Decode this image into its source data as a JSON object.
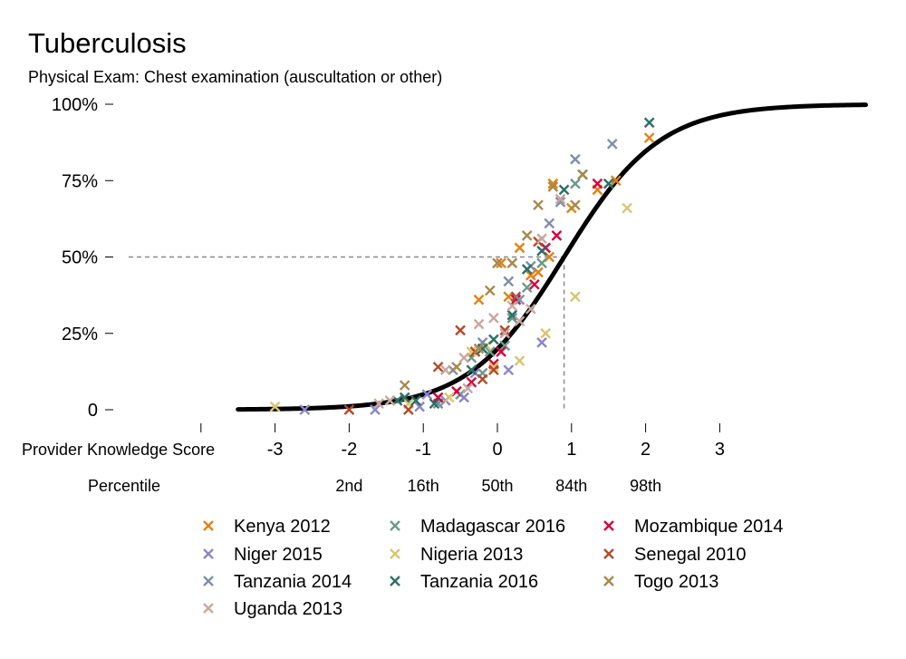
{
  "chart_data": {
    "type": "scatter",
    "title": "Tuberculosis",
    "subtitle": "Physical Exam: Chest examination (auscultation or other)",
    "xlabel": "Provider Knowledge Score",
    "secondary_xlabel": "Percentile",
    "xlim": [
      -4.0,
      5.0
    ],
    "ylim": [
      0,
      100
    ],
    "y_ticks": [
      {
        "value": 0,
        "label": "0"
      },
      {
        "value": 25,
        "label": "25%"
      },
      {
        "value": 50,
        "label": "50%"
      },
      {
        "value": 75,
        "label": "75%"
      },
      {
        "value": 100,
        "label": "100%"
      }
    ],
    "x_ticks": [
      {
        "value": -3,
        "label": "-3"
      },
      {
        "value": -2,
        "label": "-2"
      },
      {
        "value": -1,
        "label": "-1"
      },
      {
        "value": 0,
        "label": "0"
      },
      {
        "value": 1,
        "label": "1"
      },
      {
        "value": 2,
        "label": "2"
      },
      {
        "value": 3,
        "label": "3"
      }
    ],
    "percentile_ticks": [
      {
        "value": -2,
        "label": "2nd"
      },
      {
        "value": -1,
        "label": "16th"
      },
      {
        "value": 0,
        "label": "50th"
      },
      {
        "value": 1,
        "label": "84th"
      },
      {
        "value": 2,
        "label": "98th"
      }
    ],
    "reference_point": {
      "x": 0.9,
      "y": 50
    },
    "fitted_curve": {
      "type": "logistic",
      "midpoint": 0.9,
      "slope": 1.55,
      "x_range": [
        -3.5,
        4.97
      ]
    },
    "grid": false,
    "legend_position": "bottom",
    "series": [
      {
        "name": "Kenya 2012",
        "color": "#E08214",
        "points": [
          [
            -0.25,
            36
          ],
          [
            0.05,
            48
          ],
          [
            0.15,
            37
          ],
          [
            0.3,
            53
          ],
          [
            0.55,
            45
          ],
          [
            0.7,
            50
          ],
          [
            0.75,
            74
          ],
          [
            1.0,
            66
          ],
          [
            1.35,
            72
          ],
          [
            1.6,
            75
          ],
          [
            2.05,
            89
          ],
          [
            0.45,
            44
          ]
        ]
      },
      {
        "name": "Madagascar 2016",
        "color": "#6A9A8A",
        "points": [
          [
            -0.8,
            2
          ],
          [
            -0.5,
            5
          ],
          [
            -0.35,
            17
          ],
          [
            -0.1,
            19
          ],
          [
            0.1,
            21
          ],
          [
            0.2,
            30
          ],
          [
            0.4,
            40
          ],
          [
            0.6,
            48
          ],
          [
            1.05,
            74
          ],
          [
            -0.2,
            12
          ]
        ]
      },
      {
        "name": "Mozambique 2014",
        "color": "#D6003B",
        "points": [
          [
            -0.8,
            4
          ],
          [
            -0.55,
            6
          ],
          [
            -0.35,
            9
          ],
          [
            0.05,
            19
          ],
          [
            0.25,
            36
          ],
          [
            0.5,
            41
          ],
          [
            0.65,
            53
          ],
          [
            0.8,
            57
          ],
          [
            1.35,
            74
          ],
          [
            -0.05,
            15
          ]
        ]
      },
      {
        "name": "Niger 2015",
        "color": "#8B86C9",
        "points": [
          [
            -2.6,
            0
          ],
          [
            -1.65,
            0
          ],
          [
            -1.05,
            1
          ],
          [
            -0.95,
            5
          ],
          [
            -0.7,
            3
          ],
          [
            -0.45,
            4
          ],
          [
            0.15,
            13
          ],
          [
            0.6,
            22
          ],
          [
            -0.3,
            12
          ]
        ]
      },
      {
        "name": "Nigeria 2013",
        "color": "#D8C570",
        "points": [
          [
            -3.0,
            1
          ],
          [
            -1.2,
            2
          ],
          [
            -0.65,
            4
          ],
          [
            -0.35,
            19
          ],
          [
            -0.05,
            14
          ],
          [
            0.3,
            16
          ],
          [
            0.65,
            25
          ],
          [
            1.05,
            37
          ],
          [
            1.75,
            66
          ],
          [
            -0.15,
            21
          ]
        ]
      },
      {
        "name": "Senegal 2010",
        "color": "#B04A2A",
        "points": [
          [
            -2.0,
            0
          ],
          [
            -1.2,
            0
          ],
          [
            -0.8,
            14
          ],
          [
            -0.5,
            26
          ],
          [
            -0.3,
            19
          ],
          [
            -0.05,
            13
          ],
          [
            0.1,
            26
          ],
          [
            0.25,
            37
          ],
          [
            0.55,
            55
          ],
          [
            -0.2,
            10
          ]
        ]
      },
      {
        "name": "Tanzania 2014",
        "color": "#7D8FA8",
        "points": [
          [
            -0.6,
            13
          ],
          [
            -0.2,
            22
          ],
          [
            0.15,
            42
          ],
          [
            0.45,
            47
          ],
          [
            0.7,
            61
          ],
          [
            0.85,
            68
          ],
          [
            1.05,
            82
          ],
          [
            1.55,
            87
          ],
          [
            0.3,
            36
          ]
        ]
      },
      {
        "name": "Tanzania 2016",
        "color": "#2E6E68",
        "points": [
          [
            -1.35,
            3
          ],
          [
            -1.25,
            4
          ],
          [
            -1.1,
            3
          ],
          [
            -0.85,
            2
          ],
          [
            -0.35,
            13
          ],
          [
            -0.2,
            20
          ],
          [
            -0.05,
            23
          ],
          [
            0.2,
            31
          ],
          [
            0.4,
            46
          ],
          [
            0.6,
            52
          ],
          [
            0.9,
            72
          ],
          [
            1.15,
            77
          ],
          [
            1.5,
            74
          ],
          [
            2.05,
            94
          ]
        ]
      },
      {
        "name": "Togo 2013",
        "color": "#A68A4B",
        "points": [
          [
            -1.25,
            8
          ],
          [
            -0.55,
            14
          ],
          [
            -0.25,
            20
          ],
          [
            0.0,
            48
          ],
          [
            0.2,
            48
          ],
          [
            0.4,
            57
          ],
          [
            0.55,
            67
          ],
          [
            0.75,
            73
          ],
          [
            1.05,
            67
          ],
          [
            1.15,
            77
          ],
          [
            -0.1,
            39
          ]
        ]
      },
      {
        "name": "Uganda 2013",
        "color": "#C9A7A0",
        "points": [
          [
            -1.6,
            2
          ],
          [
            -1.45,
            3
          ],
          [
            -0.7,
            13
          ],
          [
            -0.45,
            17
          ],
          [
            -0.25,
            28
          ],
          [
            -0.05,
            30
          ],
          [
            0.1,
            25
          ],
          [
            0.3,
            29
          ],
          [
            0.45,
            33
          ],
          [
            0.6,
            56
          ],
          [
            0.85,
            69
          ],
          [
            -0.4,
            7
          ],
          [
            0.2,
            34
          ]
        ]
      }
    ]
  }
}
